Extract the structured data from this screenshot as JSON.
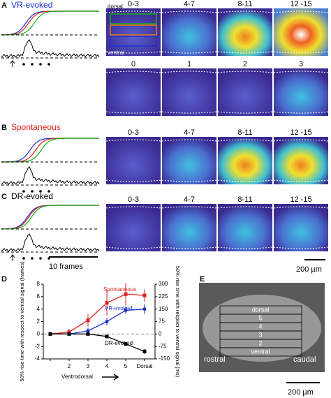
{
  "panels": {
    "A": {
      "label": "A",
      "title": "VR-evoked",
      "dorsal": "dorsal",
      "ventral": "ventral",
      "frames": [
        "0-3",
        "4-7",
        "8-11",
        "12 -15"
      ],
      "frames2": [
        "0",
        "1",
        "2",
        "3"
      ]
    },
    "B": {
      "label": "B",
      "title": "Spontaneous",
      "frames": [
        "0-3",
        "4-7",
        "8-11",
        "12 -15"
      ]
    },
    "C": {
      "label": "C",
      "title": "DR-evoked",
      "frames": [
        "0-3",
        "4-7",
        "8-11",
        "12 -15"
      ],
      "time_scale": "10 frames"
    },
    "image_scale": "200 µm",
    "D": {
      "label": "D"
    },
    "E": {
      "label": "E",
      "rows": [
        "dorsal",
        "5",
        "4",
        "3",
        "2",
        "ventral"
      ],
      "rostral": "rostral",
      "caudal": "caudal",
      "scale": "200 µm"
    }
  },
  "chart_data": {
    "type": "line",
    "categories": [
      null,
      "2",
      "3",
      "4",
      "5",
      "Dorsal"
    ],
    "x_label": "Ventrodorsal",
    "y_label": "50% rise time with respect to ventral signal (frames)",
    "y2_label": "50% rise time with respect to ventral signal (ms)",
    "ylim": [
      -4,
      8
    ],
    "yticks": [
      -4,
      -2,
      0,
      2,
      4,
      6,
      8
    ],
    "y2lim": [
      -150,
      300
    ],
    "y2ticks": [
      -150,
      -75,
      0,
      75,
      150,
      225,
      300
    ],
    "series": [
      {
        "name": "Spontaneous",
        "color": "#e02020",
        "values": [
          0,
          0.3,
          2.2,
          5,
          6.4,
          6.2
        ],
        "errors": [
          0,
          0.5,
          1,
          2,
          1.8,
          1
        ]
      },
      {
        "name": "VR-evoked",
        "color": "#1a2fd0",
        "values": [
          0,
          0,
          0.5,
          2,
          3.8,
          4
        ],
        "errors": [
          0,
          0.2,
          0.5,
          0.6,
          0.6,
          0.8
        ]
      },
      {
        "name": "DR-evoked",
        "color": "#000000",
        "values": [
          0,
          0,
          0,
          -0.4,
          -1.6,
          -2.8
        ],
        "errors": [
          0,
          0,
          0,
          0.2,
          0.3,
          0.4
        ]
      }
    ]
  }
}
